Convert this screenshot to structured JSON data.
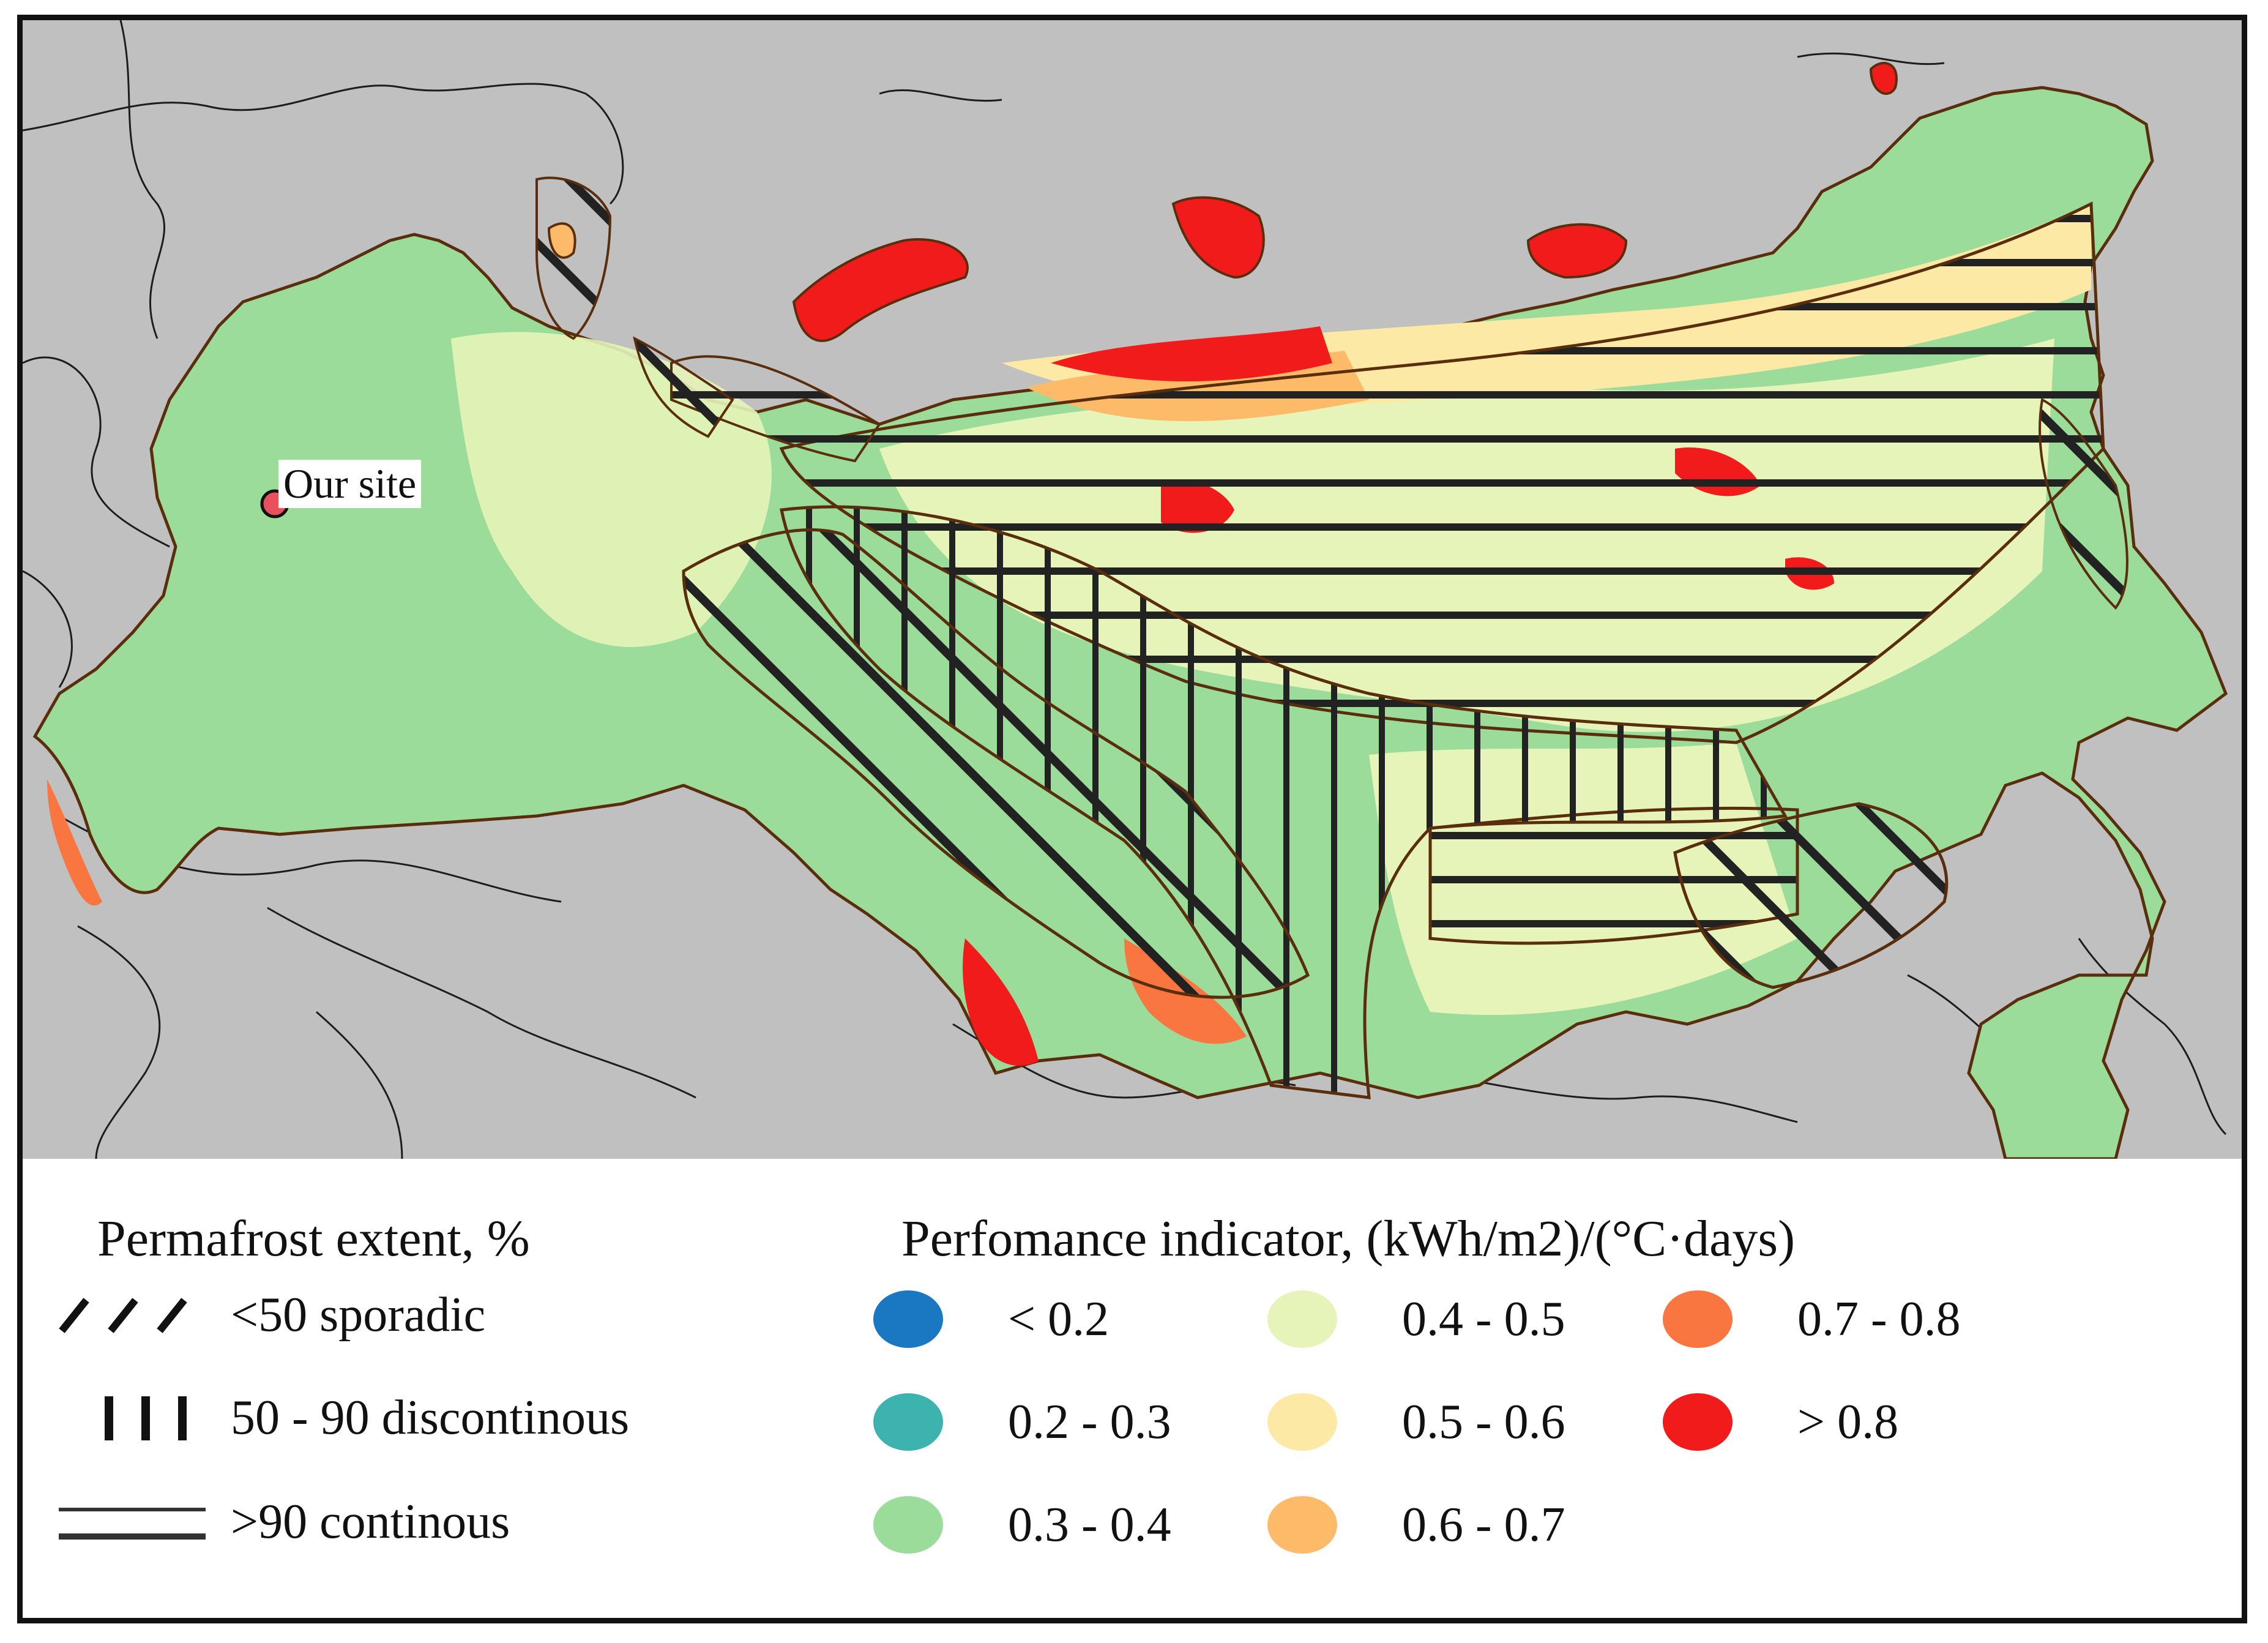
{
  "map": {
    "site_label": "Our site",
    "site_color": "#e8505b",
    "ocean_color": "#c0c0c0",
    "border_color": "#5a2e0c"
  },
  "legend": {
    "permafrost_title": "Permafrost extent, %",
    "permafrost_items": [
      {
        "pattern": "diagonal-hatch",
        "label": "<50 sporadic"
      },
      {
        "pattern": "vertical-hatch",
        "label": "50 - 90 discontinous"
      },
      {
        "pattern": "horizontal-hatch",
        "label": ">90 continous"
      }
    ],
    "performance_title": "Perfomance indicator, (kWh/m2)/(°C·days)",
    "performance_items": [
      {
        "label": "< 0.2",
        "color": "#1a78c2"
      },
      {
        "label": "0.2 - 0.3",
        "color": "#3cb3ae"
      },
      {
        "label": "0.3 - 0.4",
        "color": "#9bdc9a"
      },
      {
        "label": "0.4 - 0.5",
        "color": "#e6f4b9"
      },
      {
        "label": "0.5 - 0.6",
        "color": "#fde9a6"
      },
      {
        "label": "0.6 - 0.7",
        "color": "#fdbb6a"
      },
      {
        "label": "0.7 - 0.8",
        "color": "#f97640"
      },
      {
        "label": "> 0.8",
        "color": "#f21b1b"
      }
    ]
  }
}
